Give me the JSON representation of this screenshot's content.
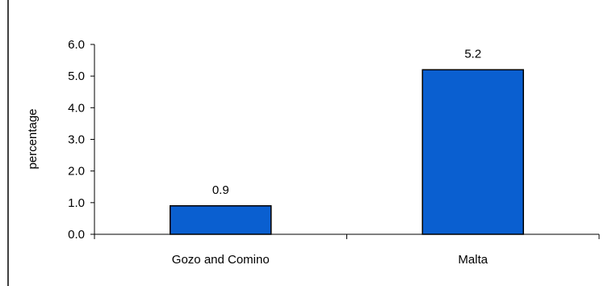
{
  "chart_data": {
    "type": "bar",
    "title": "",
    "xlabel": "",
    "ylabel": "percentage",
    "categories": [
      "Gozo and Comino",
      "Malta"
    ],
    "values": [
      0.9,
      5.2
    ],
    "data_labels": [
      "0.9",
      "5.2"
    ],
    "yticks": [
      0.0,
      1.0,
      2.0,
      3.0,
      4.0,
      5.0,
      6.0
    ],
    "ytick_labels": [
      "0.0",
      "1.0",
      "2.0",
      "3.0",
      "4.0",
      "5.0",
      "6.0"
    ],
    "ylim": [
      0,
      6
    ],
    "grid": false,
    "legend": "none",
    "bar_color": "#0a5fd0",
    "bar_edge_color": "#000000"
  }
}
